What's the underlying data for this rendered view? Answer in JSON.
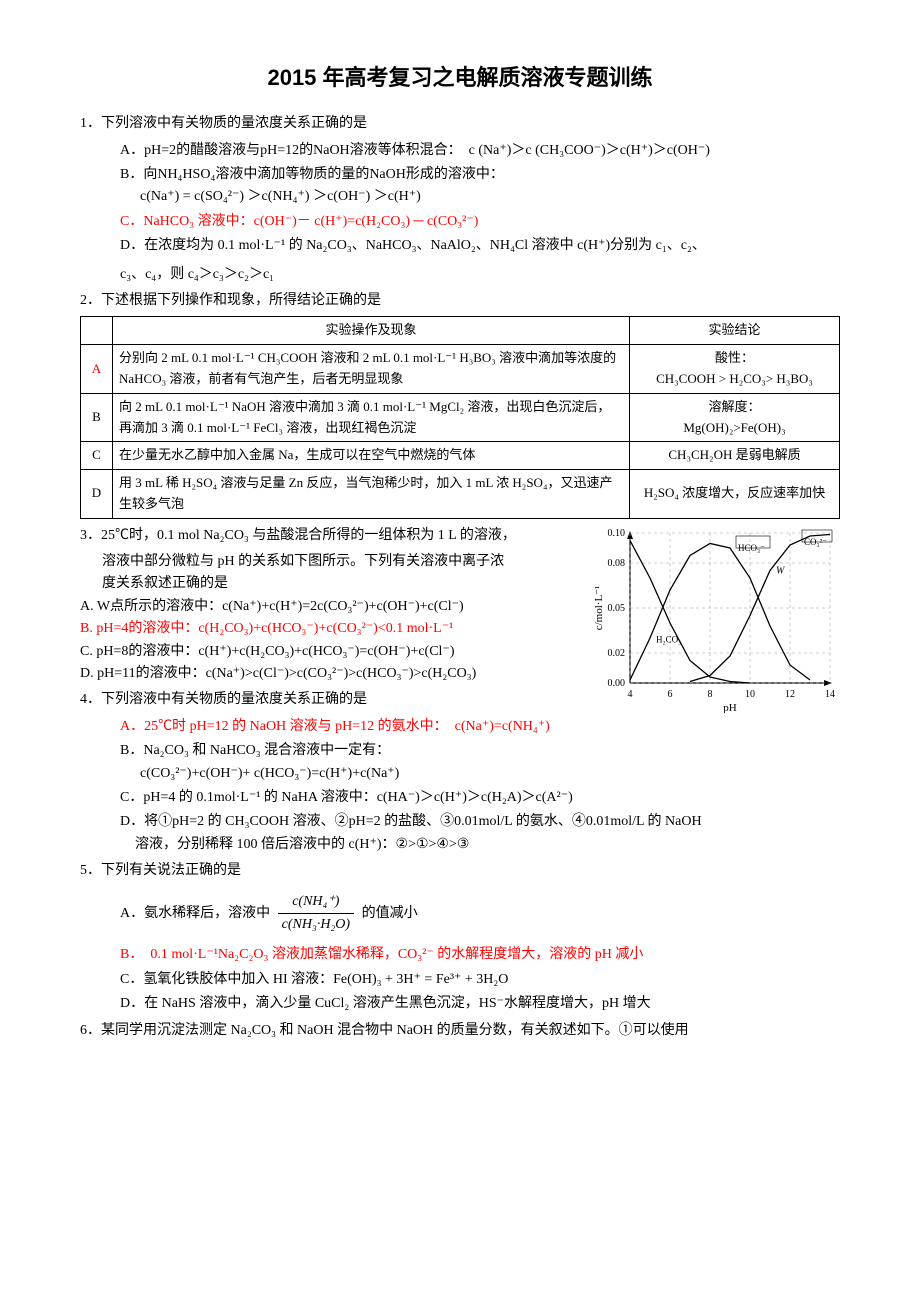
{
  "title": "2015 年高考复习之电解质溶液专题训练",
  "q1": {
    "stem": "1．下列溶液中有关物质的量浓度关系正确的是",
    "A": "A．pH=2的醋酸溶液与pH=12的NaOH溶液等体积混合：　c (Na⁺)＞c (CH₃COO⁻)＞c(H⁺)＞c(OH⁻)",
    "B1": "B．向NH₄HSO₄溶液中滴加等物质的量的NaOH形成的溶液中：",
    "B2": "c(Na⁺)  =  c(SO₄²⁻)  ＞c(NH₄⁺)  ＞c(OH⁻)  ＞c(H⁺)",
    "C": "C．NaHCO₃ 溶液中：c(OH⁻)－ c(H⁺)=c(H₂CO₃) ─ c(CO₃²⁻)",
    "D1": "D．在浓度均为 0.1 mol·L⁻¹ 的 Na₂CO₃、NaHCO₃、NaAlO₂、NH₄Cl 溶液中 c(H⁺)分别为 c₁、c₂、",
    "D2": "c₃、c₄，则 c₄＞c₃＞c₂＞c₁"
  },
  "q2": {
    "stem": "2．下述根据下列操作和现象，所得结论正确的是",
    "headers": {
      "h1": "",
      "h2": "实验操作及现象",
      "h3": "实验结论"
    },
    "rows": [
      {
        "label": "A",
        "op": "分别向 2 mL 0.1 mol·L⁻¹ CH₃COOH 溶液和 2 mL 0.1 mol·L⁻¹ H₃BO₃ 溶液中滴加等浓度的 NaHCO₃ 溶液，前者有气泡产生，后者无明显现象",
        "concl": "酸性：\nCH₃COOH > H₂CO₃> H₃BO₃"
      },
      {
        "label": "B",
        "op": "向 2 mL 0.1 mol·L⁻¹ NaOH 溶液中滴加 3 滴 0.1 mol·L⁻¹ MgCl₂ 溶液，出现白色沉淀后，再滴加 3 滴 0.1 mol·L⁻¹ FeCl₃ 溶液，出现红褐色沉淀",
        "concl": "溶解度：\nMg(OH)₂>Fe(OH)₃"
      },
      {
        "label": "C",
        "op": "在少量无水乙醇中加入金属 Na，生成可以在空气中燃烧的气体",
        "concl": "CH₃CH₂OH 是弱电解质"
      },
      {
        "label": "D",
        "op": "用 3 mL 稀 H₂SO₄ 溶液与足量 Zn 反应，当气泡稀少时，加入 1 mL 浓 H₂SO₄，又迅速产生较多气泡",
        "concl": "H₂SO₄ 浓度增大，反应速率加快"
      }
    ]
  },
  "q3": {
    "stem1": "3．25℃时，0.1 mol Na₂CO₃ 与盐酸混合所得的一组体积为 1 L 的溶液，",
    "stem2": "溶液中部分微粒与 pH 的关系如下图所示。下列有关溶液中离子浓",
    "stem3": "度关系叙述正确的是",
    "A": "A.  W点所示的溶液中：c(Na⁺)+c(H⁺)=2c(CO₃²⁻)+c(OH⁻)+c(Cl⁻)",
    "B": "B.  pH=4的溶液中：c(H₂CO₃)+c(HCO₃⁻)+c(CO₃²⁻)<0.1 mol·L⁻¹",
    "C": "C.  pH=8的溶液中：c(H⁺)+c(H₂CO₃)+c(HCO₃⁻)=c(OH⁻)+c(Cl⁻)",
    "D": "D.  pH=11的溶液中：c(Na⁺)>c(Cl⁻)>c(CO₃²⁻)>c(HCO₃⁻)>c(H₂CO₃)",
    "chart": {
      "xlabel": "pH",
      "ylabel": "c/mol·L⁻¹",
      "xlim": [
        4,
        14
      ],
      "ylim": [
        0,
        0.1
      ],
      "xticks": [
        4,
        6,
        8,
        10,
        12,
        14
      ],
      "yticks": [
        0,
        0.02,
        0.05,
        0.08,
        0.1
      ],
      "gridcolor": "#999",
      "color": "#000",
      "labels": [
        "H₂CO₃",
        "HCO₃⁻",
        "CO₃²⁻",
        "W"
      ],
      "curves": {
        "H2CO3": [
          [
            4,
            0.095
          ],
          [
            5,
            0.07
          ],
          [
            6,
            0.04
          ],
          [
            7,
            0.015
          ],
          [
            8,
            0.004
          ],
          [
            9,
            0.001
          ],
          [
            10,
            0
          ]
        ],
        "HCO3": [
          [
            4,
            0.002
          ],
          [
            5,
            0.03
          ],
          [
            6,
            0.062
          ],
          [
            7,
            0.085
          ],
          [
            8,
            0.093
          ],
          [
            9,
            0.09
          ],
          [
            10,
            0.07
          ],
          [
            11,
            0.038
          ],
          [
            12,
            0.012
          ],
          [
            13,
            0.002
          ]
        ],
        "CO3": [
          [
            7,
            0.001
          ],
          [
            8,
            0.005
          ],
          [
            9,
            0.018
          ],
          [
            10,
            0.045
          ],
          [
            11,
            0.075
          ],
          [
            12,
            0.092
          ],
          [
            13,
            0.098
          ],
          [
            14,
            0.099
          ]
        ]
      },
      "W": [
        11,
        0.075
      ]
    }
  },
  "q4": {
    "stem": "4．下列溶液中有关物质的量浓度关系正确的是",
    "A": "A．25℃时 pH=12 的 NaOH 溶液与 pH=12 的氨水中：　c(Na⁺)=c(NH₄⁺)",
    "B1": "B．Na₂CO₃ 和 NaHCO₃ 混合溶液中一定有：",
    "B2": "c(CO₃²⁻)+c(OH⁻)+  c(HCO₃⁻)=c(H⁺)+c(Na⁺)",
    "C": "C．pH=4 的 0.1mol·L⁻¹ 的 NaHA 溶液中：c(HA⁻)＞c(H⁺)＞c(H₂A)＞c(A²⁻)",
    "D1": "D．将①pH=2 的 CH₃COOH 溶液、②pH=2 的盐酸、③0.01mol/L 的氨水、④0.01mol/L 的 NaOH",
    "D2": "溶液，分别稀释 100 倍后溶液中的 c(H⁺)：②>①>④>③"
  },
  "q5": {
    "stem": "5．下列有关说法正确的是",
    "A_pre": "A．氨水稀释后，溶液中 ",
    "A_num": "c(NH₄⁺)",
    "A_den": "c(NH₃·H₂O)",
    "A_post": " 的值减小",
    "B": "B．　0.1 mol·L⁻¹Na₂C₂O₃ 溶液加蒸馏水稀释，CO₃²⁻ 的水解程度增大，溶液的 pH 减小",
    "C": "C．氢氧化铁胶体中加入 HI 溶液：Fe(OH)₃ + 3H⁺ = Fe³⁺ + 3H₂O",
    "D": "D．在 NaHS 溶液中，滴入少量 CuCl₂ 溶液产生黑色沉淀，HS⁻水解程度增大，pH 增大"
  },
  "q6": {
    "stem": "6．某同学用沉淀法测定 Na₂CO₃ 和 NaOH 混合物中 NaOH 的质量分数，有关叙述如下。①可以使用"
  }
}
